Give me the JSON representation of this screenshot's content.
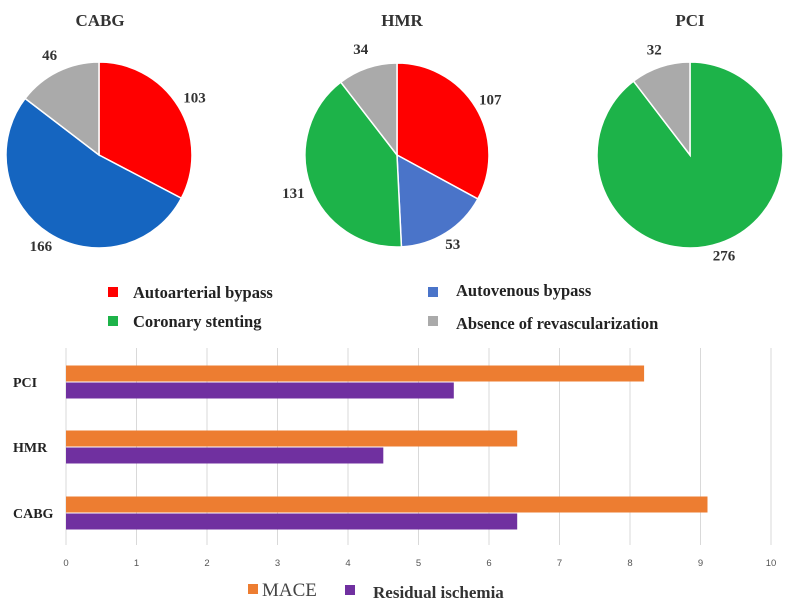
{
  "chart_data": [
    {
      "type": "pie",
      "title": "CABG",
      "slices": [
        {
          "label": "Autoarterial bypass",
          "value": 103,
          "color": "#ff0000"
        },
        {
          "label": "Autovenous bypass",
          "value": 166,
          "color": "#1565c0"
        },
        {
          "label": "Absence of revascularization",
          "value": 46,
          "color": "#aaaaaa"
        }
      ]
    },
    {
      "type": "pie",
      "title": "HMR",
      "slices": [
        {
          "label": "Autoarterial bypass",
          "value": 107,
          "color": "#ff0000"
        },
        {
          "label": "Autovenous bypass",
          "value": 53,
          "color": "#4a74c9"
        },
        {
          "label": "Coronary stenting",
          "value": 131,
          "color": "#1db349"
        },
        {
          "label": "Absence of revascularization",
          "value": 34,
          "color": "#aaaaaa"
        }
      ]
    },
    {
      "type": "pie",
      "title": "PCI",
      "slices": [
        {
          "label": "Coronary stenting",
          "value": 276,
          "color": "#1db349"
        },
        {
          "label": "Absence of revascularization",
          "value": 32,
          "color": "#aaaaaa"
        }
      ]
    },
    {
      "type": "bar",
      "orientation": "horizontal",
      "categories": [
        "PCI",
        "HMR",
        "CABG"
      ],
      "series": [
        {
          "name": "MACE",
          "values": [
            8.2,
            6.4,
            9.1
          ],
          "color": "#ed7d31"
        },
        {
          "name": "Residual ischemia",
          "values": [
            5.5,
            4.5,
            6.4
          ],
          "color": "#7030a0"
        }
      ],
      "xlim": [
        0,
        10
      ],
      "xticks": [
        "0",
        "1",
        "2",
        "3",
        "4",
        "5",
        "6",
        "7",
        "8",
        "9",
        "10"
      ],
      "grid": true,
      "legend": "bottom"
    }
  ],
  "pie_legend": [
    {
      "label": "Autoarterial bypass",
      "color": "#ff0000"
    },
    {
      "label": "Autovenous bypass",
      "color": "#4a74c9"
    },
    {
      "label": "Coronary stenting",
      "color": "#1db349"
    },
    {
      "label": "Absence of revascularization",
      "color": "#aaaaaa"
    }
  ]
}
